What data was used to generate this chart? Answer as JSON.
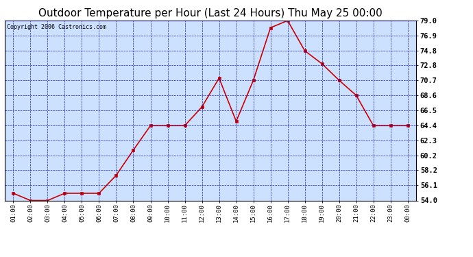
{
  "title": "Outdoor Temperature per Hour (Last 24 Hours) Thu May 25 00:00",
  "copyright": "Copyright 2006 Castronics.com",
  "hours": [
    "01:00",
    "02:00",
    "03:00",
    "04:00",
    "05:00",
    "06:00",
    "07:00",
    "08:00",
    "09:00",
    "10:00",
    "11:00",
    "12:00",
    "13:00",
    "14:00",
    "15:00",
    "16:00",
    "17:00",
    "18:00",
    "19:00",
    "20:00",
    "21:00",
    "22:00",
    "23:00",
    "00:00"
  ],
  "temps": [
    55.0,
    54.0,
    54.0,
    55.0,
    55.0,
    55.0,
    57.5,
    61.0,
    64.4,
    64.4,
    64.4,
    67.0,
    71.0,
    65.0,
    70.7,
    78.0,
    79.0,
    74.8,
    73.0,
    70.7,
    68.6,
    64.4,
    64.4,
    64.4
  ],
  "ylim_min": 54.0,
  "ylim_max": 79.0,
  "yticks": [
    54.0,
    56.1,
    58.2,
    60.2,
    62.3,
    64.4,
    66.5,
    68.6,
    70.7,
    72.8,
    74.8,
    76.9,
    79.0
  ],
  "line_color": "#cc0000",
  "marker_color": "#cc0000",
  "bg_color": "#ffffff",
  "plot_bg_color": "#cce0ff",
  "grid_color": "#0000bb",
  "title_fontsize": 11,
  "copyright_fontsize": 6,
  "tick_label_color": "#000000",
  "ytick_label_color": "#000000"
}
